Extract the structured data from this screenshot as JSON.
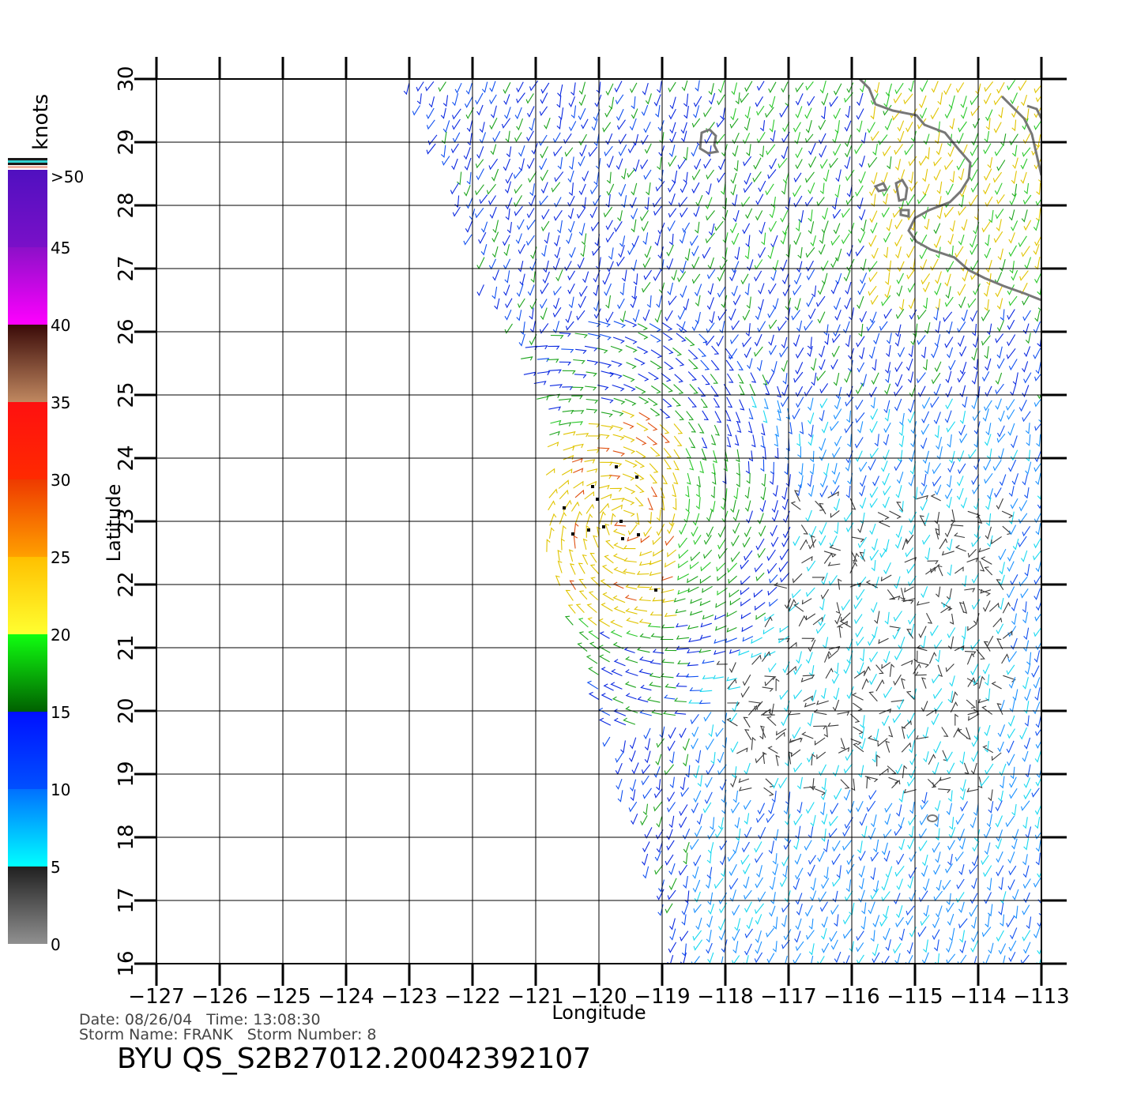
{
  "map": {
    "xlabel": "Longitude",
    "ylabel": "Latitude",
    "lon_ticks": [
      "-127",
      "-126",
      "-125",
      "-124",
      "-123",
      "-122",
      "-121",
      "-120",
      "-119",
      "-118",
      "-117",
      "-116",
      "-115",
      "-114",
      "-113"
    ],
    "lat_ticks": [
      "16",
      "17",
      "18",
      "19",
      "20",
      "21",
      "22",
      "23",
      "24",
      "25",
      "26",
      "27",
      "28",
      "29",
      "30"
    ],
    "lon_range": [
      -127,
      -113
    ],
    "lat_range": [
      16,
      30
    ],
    "grid": true,
    "wind_field": {
      "style": "wind barbs (vector sticks)",
      "swath_note": "scatterometer swath covering the eastern part of the map",
      "storm_center_approx": {
        "lon": -119.6,
        "lat": 23.0
      }
    }
  },
  "colorbar": {
    "units": "knots",
    "labels": [
      ">50",
      "45",
      "40",
      "35",
      "30",
      "25",
      "20",
      "15",
      "10",
      "5",
      "0"
    ],
    "bands": [
      {
        "from": 45,
        "to": 50,
        "top": "#5010c0",
        "bottom": "#7a10c8"
      },
      {
        "from": 40,
        "to": 45,
        "top": "#8c10c8",
        "bottom": "#ff00ff"
      },
      {
        "from": 35,
        "to": 40,
        "top": "#3a0a08",
        "bottom": "#c08860"
      },
      {
        "from": 30,
        "to": 35,
        "top": "#ff1010",
        "bottom": "#ff2a00"
      },
      {
        "from": 25,
        "to": 30,
        "top": "#ee3a00",
        "bottom": "#ffa000"
      },
      {
        "from": 20,
        "to": 25,
        "top": "#ffc000",
        "bottom": "#ffff30"
      },
      {
        "from": 15,
        "to": 20,
        "top": "#10ff10",
        "bottom": "#006000"
      },
      {
        "from": 10,
        "to": 15,
        "top": "#0010ff",
        "bottom": "#0050ff"
      },
      {
        "from": 5,
        "to": 10,
        "top": "#0070ff",
        "bottom": "#00ffff"
      },
      {
        "from": 0,
        "to": 5,
        "top": "#202020",
        "bottom": "#909090"
      }
    ]
  },
  "footer": {
    "line1": "Date: 08/26/04   Time: 13:08:30",
    "line2": "Storm Name: FRANK   Storm Number: 8",
    "title": "BYU QS_S2B27012.20042392107"
  }
}
